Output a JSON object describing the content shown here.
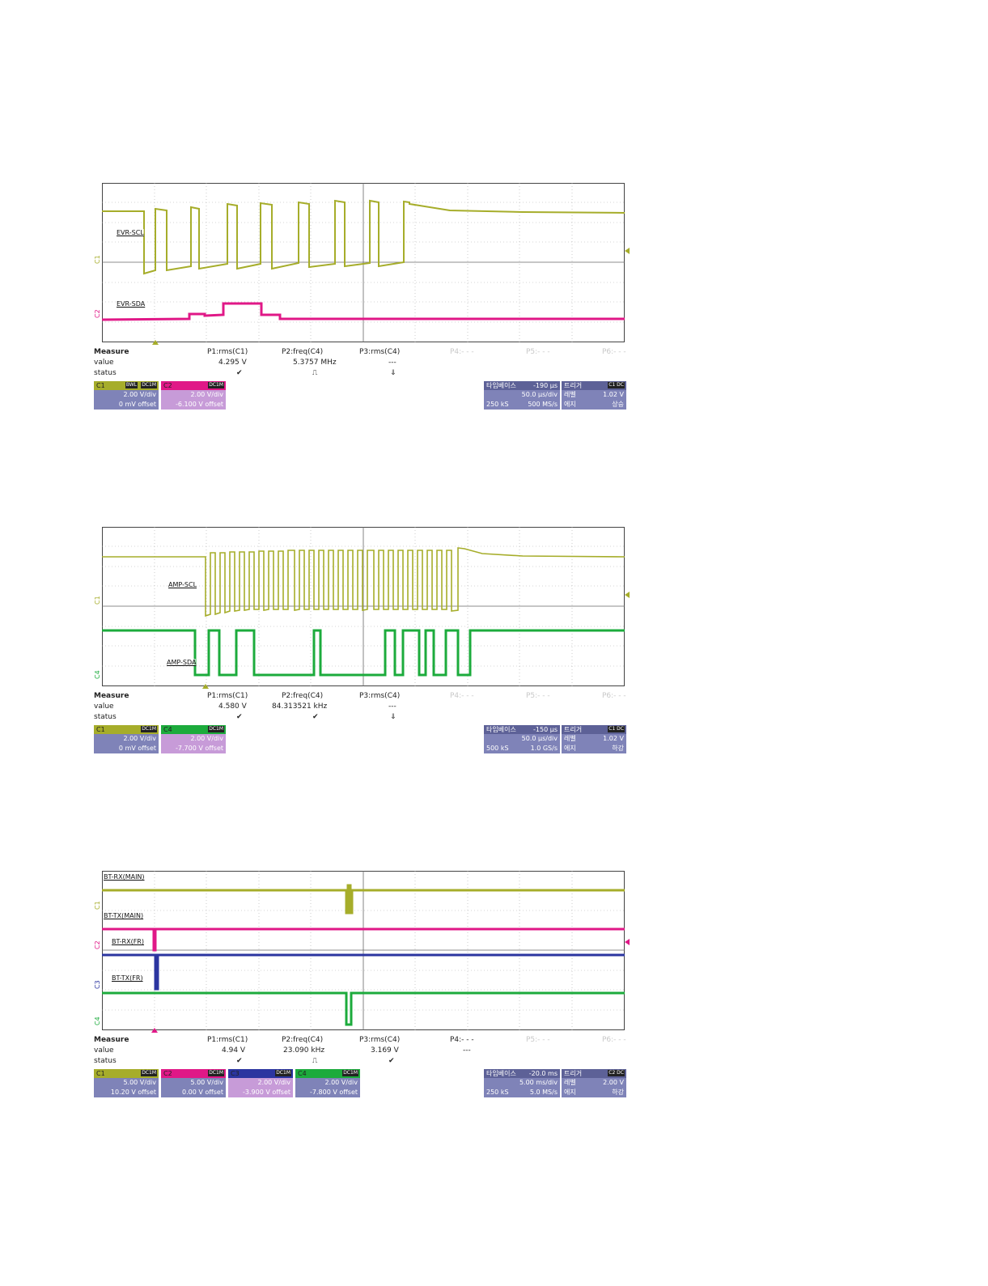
{
  "screens": [
    {
      "name": "screen1",
      "labels": [
        "EVR-SCL",
        "EVR-SDA"
      ],
      "channel_markers": [
        "C1",
        "C2"
      ],
      "colors": {
        "c1": "#a6ad2a",
        "c2": "#e01887"
      },
      "measure": {
        "title": "Measure",
        "rows": [
          "value",
          "status"
        ],
        "params": [
          {
            "name": "P1:rms(C1)",
            "value": "4.295 V",
            "status": "✔"
          },
          {
            "name": "P2:freq(C4)",
            "value": "5.3757 MHz",
            "status": "⎍"
          },
          {
            "name": "P3:rms(C4)",
            "value": "---",
            "status": "⇓"
          },
          {
            "name": "P4:- - -",
            "value": "",
            "status": ""
          },
          {
            "name": "P5:- - -",
            "value": "",
            "status": ""
          },
          {
            "name": "P6:- - -",
            "value": "",
            "status": ""
          }
        ]
      },
      "channels": [
        {
          "name": "C1",
          "coupling": "DC1M",
          "bw": "BWL",
          "vdiv": "2.00 V/div",
          "offset": "0 mV offset",
          "color": "#a6ad2a"
        },
        {
          "name": "C2",
          "coupling": "DC1M",
          "bw": "",
          "vdiv": "2.00 V/div",
          "offset": "-6.100 V offset",
          "color": "#e01887"
        }
      ],
      "timebase": {
        "title": "타임베이스",
        "delay": "-190 μs",
        "div": "50.0 μs/div",
        "samples": "250 kS",
        "rate": "500 MS/s"
      },
      "trigger": {
        "title": "트리거",
        "src": "C1 DC",
        "level_label": "레벨",
        "level": "1.02 V",
        "edge_label": "에지",
        "edge": "상승"
      }
    },
    {
      "name": "screen2",
      "labels": [
        "AMP-SCL",
        "AMP-SDA"
      ],
      "channel_markers": [
        "C1",
        "C4"
      ],
      "colors": {
        "c1": "#a6ad2a",
        "c4": "#1cab3c"
      },
      "measure": {
        "title": "Measure",
        "rows": [
          "value",
          "status"
        ],
        "params": [
          {
            "name": "P1:rms(C1)",
            "value": "4.580 V",
            "status": "✔"
          },
          {
            "name": "P2:freq(C4)",
            "value": "84.313521 kHz",
            "status": "✔"
          },
          {
            "name": "P3:rms(C4)",
            "value": "---",
            "status": "⇓"
          },
          {
            "name": "P4:- - -",
            "value": "",
            "status": ""
          },
          {
            "name": "P5:- - -",
            "value": "",
            "status": ""
          },
          {
            "name": "P6:- - -",
            "value": "",
            "status": ""
          }
        ]
      },
      "channels": [
        {
          "name": "C1",
          "coupling": "DC1M",
          "bw": "",
          "vdiv": "2.00 V/div",
          "offset": "0 mV offset",
          "color": "#a6ad2a"
        },
        {
          "name": "C4",
          "coupling": "DC1M",
          "bw": "",
          "vdiv": "2.00 V/div",
          "offset": "-7.700 V offset",
          "color": "#1cab3c"
        }
      ],
      "timebase": {
        "title": "타임베이스",
        "delay": "-150 μs",
        "div": "50.0 μs/div",
        "samples": "500 kS",
        "rate": "1.0 GS/s"
      },
      "trigger": {
        "title": "트리거",
        "src": "C1 DC",
        "level_label": "레벨",
        "level": "1.02 V",
        "edge_label": "에지",
        "edge": "하강"
      }
    },
    {
      "name": "screen3",
      "labels": [
        "BT-RX(MAIN)",
        "BT-TX(MAIN)",
        "BT-RX(FR)",
        "BT-TX(FR)"
      ],
      "channel_markers": [
        "C1",
        "C2",
        "C3",
        "C4"
      ],
      "colors": {
        "c1": "#a6ad2a",
        "c2": "#e01887",
        "c3": "#2b35a0",
        "c4": "#1cab3c"
      },
      "measure": {
        "title": "Measure",
        "rows": [
          "value",
          "status"
        ],
        "params": [
          {
            "name": "P1:rms(C1)",
            "value": "4.94 V",
            "status": "✔"
          },
          {
            "name": "P2:freq(C4)",
            "value": "23.090 kHz",
            "status": "⎍"
          },
          {
            "name": "P3:rms(C4)",
            "value": "3.169 V",
            "status": "✔"
          },
          {
            "name": "P4:- - -",
            "value": "---",
            "status": ""
          },
          {
            "name": "P5:- - -",
            "value": "",
            "status": ""
          },
          {
            "name": "P6:- - -",
            "value": "",
            "status": ""
          }
        ]
      },
      "channels": [
        {
          "name": "C1",
          "coupling": "DC1M",
          "bw": "",
          "vdiv": "5.00 V/div",
          "offset": "10.20 V offset",
          "color": "#a6ad2a"
        },
        {
          "name": "C2",
          "coupling": "DC1M",
          "bw": "",
          "vdiv": "5.00 V/div",
          "offset": "0.00 V offset",
          "color": "#e01887"
        },
        {
          "name": "C3",
          "coupling": "DC1M",
          "bw": "",
          "vdiv": "2.00 V/div",
          "offset": "-3.900 V offset",
          "color": "#2b35a0"
        },
        {
          "name": "C4",
          "coupling": "DC1M",
          "bw": "",
          "vdiv": "2.00 V/div",
          "offset": "-7.800 V offset",
          "color": "#1cab3c"
        }
      ],
      "timebase": {
        "title": "타임베이스",
        "delay": "-20.0 ms",
        "div": "5.00 ms/div",
        "samples": "250 kS",
        "rate": "5.0 MS/s"
      },
      "trigger": {
        "title": "트리거",
        "src": "C2 DC",
        "level_label": "레벨",
        "level": "2.00 V",
        "edge_label": "에지",
        "edge": "하강"
      }
    }
  ]
}
